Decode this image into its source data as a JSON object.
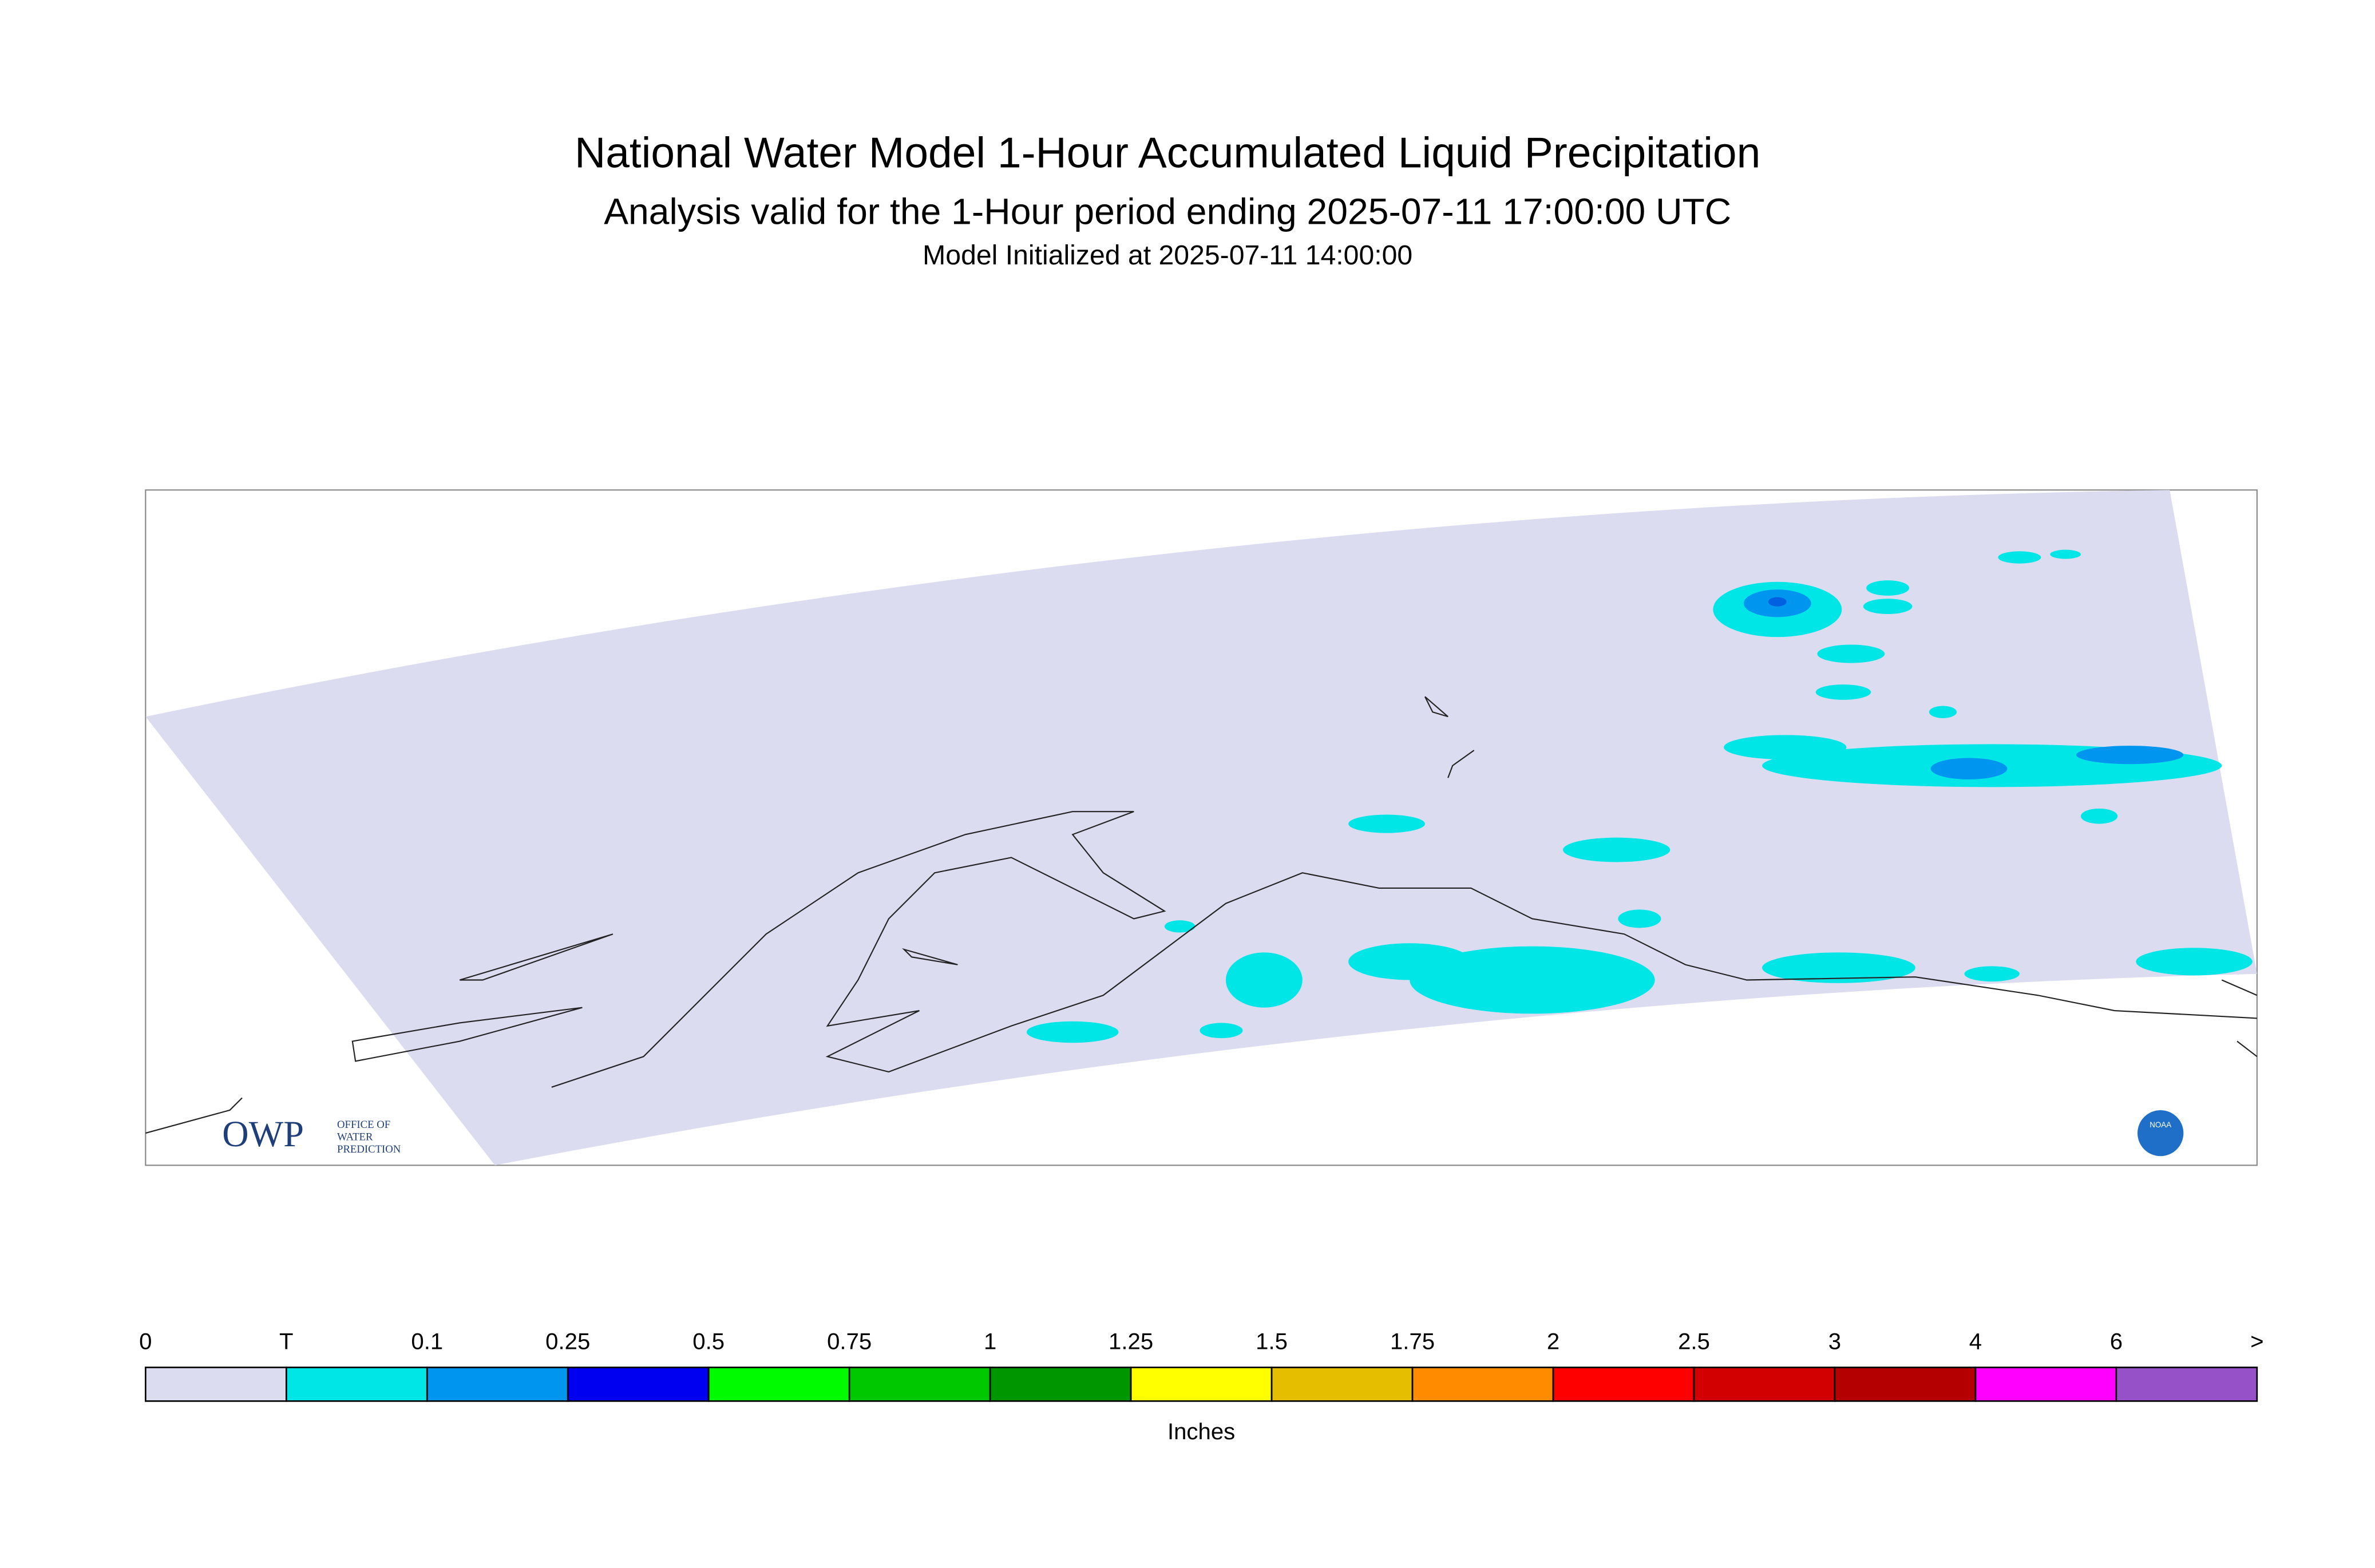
{
  "header": {
    "title": "National Water Model 1-Hour Accumulated Liquid Precipitation",
    "subtitle": "Analysis valid for the 1-Hour period ending 2025-07-11 17:00:00 UTC",
    "init": "Model Initialized at 2025-07-11 14:00:00"
  },
  "logos": {
    "owp": "OWP",
    "owp_line1": "OFFICE OF",
    "owp_line2": "WATER",
    "owp_line3": "PREDICTION",
    "noaa": "NOAA"
  },
  "legend": {
    "labels": [
      "0",
      "T",
      "0.1",
      "0.25",
      "0.5",
      "0.75",
      "1",
      "1.25",
      "1.5",
      "1.75",
      "2",
      "2.5",
      "3",
      "4",
      "6",
      ">"
    ],
    "colors": [
      "#dcdcf0",
      "#00e6e6",
      "#0096f0",
      "#0000f0",
      "#00fa00",
      "#00c800",
      "#009600",
      "#ffff00",
      "#e6be00",
      "#ff8c00",
      "#ff0000",
      "#d20000",
      "#b40000",
      "#ff00ff",
      "#9650c8"
    ],
    "units": "Inches"
  }
}
